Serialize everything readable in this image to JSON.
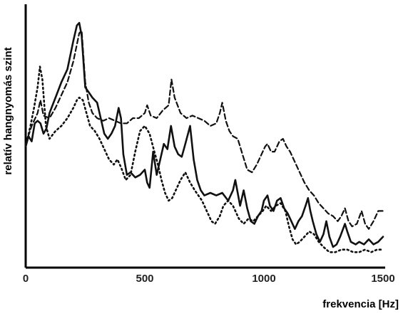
{
  "chart_data": {
    "type": "line",
    "xlabel": "frekvencia [Hz]",
    "ylabel": "relatív hangnyomás szint",
    "xlim": [
      0,
      1500
    ],
    "ylim": [
      0,
      100
    ],
    "xticks": [
      0,
      500,
      1000,
      1500
    ],
    "x_tick_labels": [
      "0",
      "500",
      "1000",
      "1500"
    ],
    "y_tick_labels_shown": false,
    "grid": false,
    "legend": "none",
    "series": [
      {
        "style": "solid",
        "color": "#111111",
        "points": [
          [
            0,
            47
          ],
          [
            12,
            51
          ],
          [
            25,
            49
          ],
          [
            38,
            56
          ],
          [
            50,
            57
          ],
          [
            62,
            56
          ],
          [
            75,
            52
          ],
          [
            87,
            54
          ],
          [
            100,
            60
          ],
          [
            125,
            66
          ],
          [
            150,
            72
          ],
          [
            175,
            77
          ],
          [
            200,
            88
          ],
          [
            215,
            94
          ],
          [
            225,
            95
          ],
          [
            235,
            90
          ],
          [
            250,
            70
          ],
          [
            265,
            68
          ],
          [
            280,
            66
          ],
          [
            300,
            64
          ],
          [
            315,
            58
          ],
          [
            330,
            52
          ],
          [
            345,
            50
          ],
          [
            360,
            52
          ],
          [
            375,
            55
          ],
          [
            390,
            62
          ],
          [
            400,
            58
          ],
          [
            410,
            44
          ],
          [
            425,
            36
          ],
          [
            440,
            37
          ],
          [
            460,
            35
          ],
          [
            480,
            36
          ],
          [
            500,
            38
          ],
          [
            510,
            33
          ],
          [
            520,
            31
          ],
          [
            535,
            45
          ],
          [
            550,
            36
          ],
          [
            565,
            42
          ],
          [
            580,
            48
          ],
          [
            595,
            46
          ],
          [
            610,
            55
          ],
          [
            625,
            47
          ],
          [
            640,
            44
          ],
          [
            655,
            43
          ],
          [
            670,
            48
          ],
          [
            690,
            55
          ],
          [
            705,
            42
          ],
          [
            720,
            34
          ],
          [
            735,
            30
          ],
          [
            750,
            28
          ],
          [
            775,
            29
          ],
          [
            800,
            28
          ],
          [
            825,
            29
          ],
          [
            850,
            26
          ],
          [
            870,
            30
          ],
          [
            880,
            34
          ],
          [
            900,
            24
          ],
          [
            915,
            30
          ],
          [
            930,
            23
          ],
          [
            945,
            18
          ],
          [
            960,
            17
          ],
          [
            975,
            20
          ],
          [
            990,
            22
          ],
          [
            1000,
            26
          ],
          [
            1015,
            28
          ],
          [
            1025,
            24
          ],
          [
            1040,
            22
          ],
          [
            1055,
            26
          ],
          [
            1070,
            27
          ],
          [
            1085,
            23
          ],
          [
            1100,
            21
          ],
          [
            1115,
            18
          ],
          [
            1130,
            15
          ],
          [
            1145,
            18
          ],
          [
            1160,
            20
          ],
          [
            1175,
            24
          ],
          [
            1185,
            27
          ],
          [
            1195,
            22
          ],
          [
            1205,
            18
          ],
          [
            1220,
            13
          ],
          [
            1235,
            10
          ],
          [
            1250,
            13
          ],
          [
            1262,
            18
          ],
          [
            1275,
            12
          ],
          [
            1290,
            8
          ],
          [
            1305,
            9
          ],
          [
            1320,
            12
          ],
          [
            1340,
            17
          ],
          [
            1350,
            14
          ],
          [
            1365,
            10
          ],
          [
            1385,
            9
          ],
          [
            1400,
            10
          ],
          [
            1420,
            9
          ],
          [
            1440,
            11
          ],
          [
            1460,
            9
          ],
          [
            1480,
            10
          ],
          [
            1500,
            12
          ]
        ]
      },
      {
        "style": "dashed",
        "color": "#222222",
        "points": [
          [
            0,
            48
          ],
          [
            25,
            55
          ],
          [
            50,
            60
          ],
          [
            62,
            65
          ],
          [
            75,
            59
          ],
          [
            100,
            58
          ],
          [
            125,
            62
          ],
          [
            150,
            67
          ],
          [
            175,
            72
          ],
          [
            200,
            80
          ],
          [
            225,
            91
          ],
          [
            235,
            92
          ],
          [
            250,
            72
          ],
          [
            265,
            64
          ],
          [
            280,
            60
          ],
          [
            300,
            58
          ],
          [
            325,
            57
          ],
          [
            350,
            58
          ],
          [
            375,
            57
          ],
          [
            400,
            56
          ],
          [
            425,
            56
          ],
          [
            450,
            58
          ],
          [
            475,
            58
          ],
          [
            500,
            60
          ],
          [
            510,
            63
          ],
          [
            525,
            59
          ],
          [
            550,
            58
          ],
          [
            575,
            61
          ],
          [
            600,
            63
          ],
          [
            612,
            73
          ],
          [
            625,
            66
          ],
          [
            650,
            60
          ],
          [
            675,
            58
          ],
          [
            700,
            59
          ],
          [
            725,
            58
          ],
          [
            750,
            57
          ],
          [
            775,
            55
          ],
          [
            800,
            56
          ],
          [
            815,
            60
          ],
          [
            825,
            64
          ],
          [
            840,
            57
          ],
          [
            855,
            53
          ],
          [
            870,
            51
          ],
          [
            890,
            50
          ],
          [
            910,
            44
          ],
          [
            930,
            38
          ],
          [
            950,
            37
          ],
          [
            970,
            40
          ],
          [
            990,
            44
          ],
          [
            1005,
            47
          ],
          [
            1015,
            48
          ],
          [
            1030,
            45
          ],
          [
            1045,
            45
          ],
          [
            1065,
            49
          ],
          [
            1080,
            50
          ],
          [
            1095,
            47
          ],
          [
            1110,
            45
          ],
          [
            1130,
            41
          ],
          [
            1150,
            37
          ],
          [
            1170,
            33
          ],
          [
            1190,
            30
          ],
          [
            1210,
            28
          ],
          [
            1230,
            25
          ],
          [
            1250,
            23
          ],
          [
            1270,
            21
          ],
          [
            1290,
            20
          ],
          [
            1310,
            18
          ],
          [
            1325,
            20
          ],
          [
            1340,
            23
          ],
          [
            1355,
            18
          ],
          [
            1370,
            16
          ],
          [
            1390,
            17
          ],
          [
            1410,
            22
          ],
          [
            1425,
            17
          ],
          [
            1440,
            15
          ],
          [
            1460,
            18
          ],
          [
            1480,
            22
          ],
          [
            1500,
            22
          ]
        ]
      },
      {
        "style": "dotted",
        "color": "#333333",
        "points": [
          [
            0,
            47
          ],
          [
            20,
            55
          ],
          [
            35,
            62
          ],
          [
            50,
            70
          ],
          [
            60,
            78
          ],
          [
            70,
            73
          ],
          [
            85,
            55
          ],
          [
            100,
            50
          ],
          [
            125,
            53
          ],
          [
            150,
            55
          ],
          [
            175,
            58
          ],
          [
            200,
            62
          ],
          [
            215,
            65
          ],
          [
            225,
            66
          ],
          [
            240,
            65
          ],
          [
            255,
            60
          ],
          [
            270,
            55
          ],
          [
            290,
            53
          ],
          [
            310,
            50
          ],
          [
            330,
            46
          ],
          [
            350,
            42
          ],
          [
            370,
            40
          ],
          [
            385,
            42
          ],
          [
            400,
            39
          ],
          [
            420,
            34
          ],
          [
            440,
            36
          ],
          [
            460,
            45
          ],
          [
            480,
            53
          ],
          [
            500,
            55
          ],
          [
            520,
            52
          ],
          [
            540,
            45
          ],
          [
            555,
            40
          ],
          [
            570,
            34
          ],
          [
            585,
            29
          ],
          [
            600,
            26
          ],
          [
            615,
            27
          ],
          [
            630,
            30
          ],
          [
            650,
            34
          ],
          [
            670,
            37
          ],
          [
            690,
            33
          ],
          [
            710,
            30
          ],
          [
            725,
            28
          ],
          [
            740,
            26
          ],
          [
            760,
            22
          ],
          [
            780,
            18
          ],
          [
            795,
            17
          ],
          [
            815,
            20
          ],
          [
            830,
            24
          ],
          [
            850,
            26
          ],
          [
            870,
            24
          ],
          [
            895,
            19
          ],
          [
            915,
            17
          ],
          [
            935,
            19
          ],
          [
            955,
            18
          ],
          [
            975,
            20
          ],
          [
            995,
            22
          ],
          [
            1010,
            24
          ],
          [
            1030,
            22
          ],
          [
            1050,
            24
          ],
          [
            1070,
            25
          ],
          [
            1090,
            22
          ],
          [
            1105,
            16
          ],
          [
            1120,
            11
          ],
          [
            1135,
            9
          ],
          [
            1150,
            10
          ],
          [
            1170,
            12
          ],
          [
            1190,
            14
          ],
          [
            1210,
            13
          ],
          [
            1230,
            10
          ],
          [
            1250,
            8
          ],
          [
            1275,
            6
          ],
          [
            1300,
            6
          ],
          [
            1325,
            7
          ],
          [
            1350,
            7
          ],
          [
            1375,
            6
          ],
          [
            1400,
            6
          ],
          [
            1425,
            7
          ],
          [
            1450,
            6
          ],
          [
            1475,
            7
          ],
          [
            1500,
            7
          ]
        ]
      }
    ]
  }
}
